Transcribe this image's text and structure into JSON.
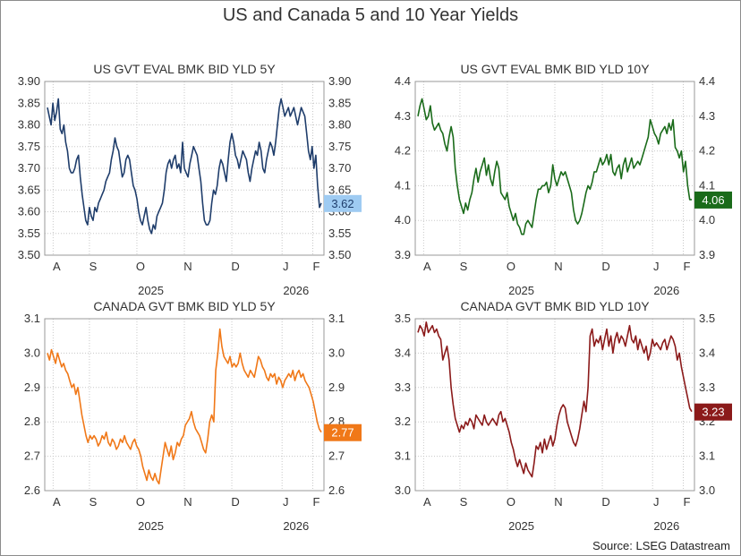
{
  "title": "US and Canada 5 and 10 Year Yields",
  "source": "Source: LSEG Datastream",
  "chart_data": [
    {
      "type": "line",
      "title": "US GVT EVAL BMK BID YLD 5Y",
      "color": "#1f3d6b",
      "label_bg": "#9ecbf2",
      "label_fg": "#1f3d6b",
      "last_label": "3.62",
      "last_value": 3.62,
      "ylim": [
        3.5,
        3.9
      ],
      "yticks": [
        "3.50",
        "3.55",
        "3.60",
        "3.65",
        "3.70",
        "3.75",
        "3.80",
        "3.85",
        "3.90"
      ],
      "xticks": [
        "A",
        "S",
        "O",
        "N",
        "D",
        "J",
        "F"
      ],
      "years": [
        "2025",
        "2026"
      ],
      "values": [
        3.84,
        3.82,
        3.8,
        3.85,
        3.81,
        3.83,
        3.86,
        3.79,
        3.78,
        3.8,
        3.76,
        3.74,
        3.7,
        3.69,
        3.69,
        3.7,
        3.72,
        3.73,
        3.68,
        3.64,
        3.61,
        3.58,
        3.57,
        3.61,
        3.59,
        3.58,
        3.61,
        3.6,
        3.62,
        3.63,
        3.64,
        3.65,
        3.67,
        3.68,
        3.69,
        3.72,
        3.74,
        3.77,
        3.75,
        3.74,
        3.71,
        3.68,
        3.69,
        3.72,
        3.73,
        3.72,
        3.69,
        3.66,
        3.65,
        3.63,
        3.6,
        3.58,
        3.57,
        3.59,
        3.61,
        3.58,
        3.56,
        3.55,
        3.57,
        3.56,
        3.59,
        3.6,
        3.61,
        3.62,
        3.65,
        3.69,
        3.71,
        3.72,
        3.7,
        3.72,
        3.73,
        3.7,
        3.71,
        3.69,
        3.76,
        3.7,
        3.69,
        3.68,
        3.71,
        3.73,
        3.75,
        3.74,
        3.73,
        3.7,
        3.67,
        3.62,
        3.58,
        3.57,
        3.57,
        3.58,
        3.62,
        3.65,
        3.64,
        3.66,
        3.7,
        3.72,
        3.71,
        3.69,
        3.67,
        3.72,
        3.76,
        3.78,
        3.76,
        3.73,
        3.72,
        3.7,
        3.72,
        3.74,
        3.73,
        3.72,
        3.69,
        3.67,
        3.7,
        3.72,
        3.74,
        3.73,
        3.76,
        3.74,
        3.7,
        3.69,
        3.72,
        3.74,
        3.76,
        3.75,
        3.73,
        3.76,
        3.8,
        3.84,
        3.86,
        3.84,
        3.82,
        3.83,
        3.84,
        3.82,
        3.83,
        3.84,
        3.82,
        3.8,
        3.82,
        3.84,
        3.83,
        3.82,
        3.78,
        3.74,
        3.72,
        3.75,
        3.7,
        3.73,
        3.66,
        3.61,
        3.62
      ]
    },
    {
      "type": "line",
      "title": "US GVT EVAL BMK BID YLD 10Y",
      "color": "#1a6b1a",
      "label_bg": "#1a6b1a",
      "label_fg": "#ffffff",
      "last_label": "4.06",
      "last_value": 4.06,
      "ylim": [
        3.9,
        4.4
      ],
      "yticks": [
        "3.9",
        "4.0",
        "4.1",
        "4.2",
        "4.3",
        "4.4"
      ],
      "xticks": [
        "A",
        "S",
        "O",
        "N",
        "D",
        "J",
        "F"
      ],
      "years": [
        "2025",
        "2026"
      ],
      "values": [
        4.3,
        4.33,
        4.35,
        4.32,
        4.29,
        4.3,
        4.33,
        4.28,
        4.26,
        4.27,
        4.28,
        4.26,
        4.25,
        4.22,
        4.2,
        4.24,
        4.27,
        4.24,
        4.15,
        4.1,
        4.06,
        4.04,
        4.02,
        4.05,
        4.03,
        4.06,
        4.08,
        4.12,
        4.15,
        4.11,
        4.14,
        4.16,
        4.18,
        4.13,
        4.16,
        4.12,
        4.1,
        4.14,
        4.17,
        4.15,
        4.08,
        4.07,
        4.06,
        4.08,
        4.04,
        4.02,
        4.0,
        4.02,
        3.99,
        3.98,
        3.96,
        3.96,
        3.99,
        4.0,
        3.99,
        3.98,
        4.02,
        4.06,
        4.09,
        4.09,
        4.1,
        4.1,
        4.11,
        4.08,
        4.1,
        4.16,
        4.12,
        4.1,
        4.12,
        4.14,
        4.13,
        4.14,
        4.12,
        4.1,
        4.08,
        4.03,
        4.0,
        3.99,
        4.0,
        4.02,
        4.05,
        4.08,
        4.1,
        4.09,
        4.11,
        4.14,
        4.14,
        4.16,
        4.18,
        4.16,
        4.17,
        4.19,
        4.16,
        4.19,
        4.14,
        4.13,
        4.15,
        4.16,
        4.12,
        4.16,
        4.18,
        4.14,
        4.16,
        4.18,
        4.15,
        4.16,
        4.17,
        4.16,
        4.18,
        4.2,
        4.22,
        4.24,
        4.29,
        4.27,
        4.25,
        4.24,
        4.22,
        4.25,
        4.26,
        4.27,
        4.25,
        4.28,
        4.26,
        4.29,
        4.21,
        4.2,
        4.18,
        4.2,
        4.14,
        4.17,
        4.1,
        4.06,
        4.06
      ]
    },
    {
      "type": "line",
      "title": "CANADA GVT BMK BID YLD 5Y",
      "color": "#f07818",
      "label_bg": "#f07818",
      "label_fg": "#ffffff",
      "last_label": "2.77",
      "last_value": 2.77,
      "ylim": [
        2.6,
        3.1
      ],
      "yticks": [
        "2.6",
        "2.7",
        "2.8",
        "2.9",
        "3.0",
        "3.1"
      ],
      "xticks": [
        "A",
        "S",
        "O",
        "N",
        "D",
        "J",
        "F"
      ],
      "years": [
        "2025",
        "2026"
      ],
      "values": [
        3.0,
        2.98,
        3.01,
        2.99,
        2.97,
        3.0,
        2.98,
        2.96,
        2.97,
        2.95,
        2.94,
        2.92,
        2.9,
        2.91,
        2.88,
        2.9,
        2.86,
        2.82,
        2.79,
        2.76,
        2.74,
        2.76,
        2.75,
        2.76,
        2.75,
        2.73,
        2.74,
        2.76,
        2.75,
        2.77,
        2.74,
        2.73,
        2.75,
        2.74,
        2.72,
        2.73,
        2.75,
        2.74,
        2.76,
        2.74,
        2.73,
        2.72,
        2.74,
        2.75,
        2.73,
        2.72,
        2.7,
        2.67,
        2.65,
        2.63,
        2.66,
        2.64,
        2.63,
        2.65,
        2.63,
        2.62,
        2.66,
        2.7,
        2.74,
        2.72,
        2.7,
        2.73,
        2.69,
        2.71,
        2.74,
        2.73,
        2.75,
        2.76,
        2.79,
        2.8,
        2.81,
        2.83,
        2.8,
        2.78,
        2.77,
        2.76,
        2.74,
        2.72,
        2.71,
        2.75,
        2.8,
        2.82,
        2.8,
        2.95,
        3.0,
        3.07,
        3.02,
        2.99,
        2.98,
        2.97,
        2.99,
        2.96,
        2.97,
        2.96,
        2.97,
        3.0,
        2.97,
        2.95,
        2.94,
        2.93,
        2.95,
        2.94,
        2.93,
        2.96,
        2.99,
        2.98,
        2.96,
        2.95,
        2.93,
        2.92,
        2.94,
        2.93,
        2.94,
        2.91,
        2.93,
        2.92,
        2.9,
        2.92,
        2.93,
        2.94,
        2.93,
        2.95,
        2.92,
        2.94,
        2.95,
        2.93,
        2.94,
        2.92,
        2.91,
        2.9,
        2.88,
        2.86,
        2.83,
        2.8,
        2.78,
        2.77
      ]
    },
    {
      "type": "line",
      "title": "CANADA GVT BMK BID YLD 10Y",
      "color": "#8b1a1a",
      "label_bg": "#8b1a1a",
      "label_fg": "#ffffff",
      "last_label": "3.23",
      "last_value": 3.23,
      "ylim": [
        3.0,
        3.5
      ],
      "yticks": [
        "3.0",
        "3.1",
        "3.2",
        "3.3",
        "3.4",
        "3.5"
      ],
      "xticks": [
        "A",
        "S",
        "O",
        "N",
        "D",
        "J",
        "F"
      ],
      "years": [
        "2025",
        "2026"
      ],
      "values": [
        3.46,
        3.48,
        3.47,
        3.45,
        3.49,
        3.46,
        3.47,
        3.48,
        3.46,
        3.47,
        3.45,
        3.44,
        3.38,
        3.4,
        3.42,
        3.38,
        3.3,
        3.25,
        3.21,
        3.19,
        3.17,
        3.19,
        3.18,
        3.2,
        3.19,
        3.21,
        3.2,
        3.18,
        3.22,
        3.21,
        3.2,
        3.19,
        3.22,
        3.2,
        3.19,
        3.2,
        3.21,
        3.2,
        3.19,
        3.22,
        3.23,
        3.2,
        3.21,
        3.19,
        3.17,
        3.14,
        3.12,
        3.09,
        3.07,
        3.09,
        3.07,
        3.05,
        3.08,
        3.06,
        3.05,
        3.04,
        3.08,
        3.13,
        3.12,
        3.14,
        3.11,
        3.15,
        3.12,
        3.14,
        3.16,
        3.13,
        3.15,
        3.19,
        3.22,
        3.24,
        3.25,
        3.24,
        3.2,
        3.18,
        3.16,
        3.14,
        3.13,
        3.15,
        3.18,
        3.22,
        3.26,
        3.23,
        3.3,
        3.45,
        3.47,
        3.42,
        3.44,
        3.43,
        3.45,
        3.41,
        3.44,
        3.47,
        3.42,
        3.45,
        3.4,
        3.44,
        3.46,
        3.43,
        3.45,
        3.44,
        3.42,
        3.45,
        3.48,
        3.44,
        3.43,
        3.45,
        3.41,
        3.44,
        3.42,
        3.4,
        3.42,
        3.38,
        3.4,
        3.44,
        3.42,
        3.43,
        3.42,
        3.41,
        3.43,
        3.44,
        3.41,
        3.43,
        3.45,
        3.44,
        3.42,
        3.38,
        3.4,
        3.36,
        3.33,
        3.3,
        3.27,
        3.24,
        3.23
      ]
    }
  ]
}
